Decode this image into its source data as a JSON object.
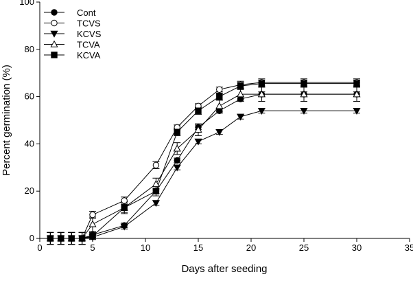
{
  "chart_data": {
    "type": "line",
    "xlabel": "Days after seeding",
    "ylabel": "Percent germination (%)",
    "xlim": [
      0,
      35
    ],
    "ylim": [
      0,
      100
    ],
    "xticks": [
      0,
      5,
      10,
      15,
      20,
      25,
      30,
      35
    ],
    "yticks": [
      0,
      20,
      40,
      60,
      80,
      100
    ],
    "grid": false,
    "legend_position": "top-left",
    "x": [
      1,
      2,
      3,
      4,
      5,
      8,
      11,
      13,
      15,
      17,
      19,
      21,
      25,
      30
    ],
    "series": [
      {
        "name": "Cont",
        "marker": "filled-circle",
        "values": [
          0,
          0,
          0,
          0,
          1.5,
          5.5,
          20,
          33,
          47,
          54,
          59,
          61,
          61,
          61
        ],
        "errors": [
          2.5,
          2.5,
          2.5,
          2.5,
          1,
          1,
          1,
          1,
          1,
          1,
          1,
          1,
          1,
          1
        ]
      },
      {
        "name": "TCVS",
        "marker": "open-circle",
        "values": [
          0,
          0,
          0,
          0,
          10,
          16,
          31,
          47,
          56,
          63,
          65,
          66,
          66,
          66
        ],
        "errors": [
          2.5,
          2.5,
          2.5,
          2.5,
          1.5,
          1.5,
          1.5,
          1,
          1,
          1,
          1.5,
          1.5,
          1.5,
          1.5
        ]
      },
      {
        "name": "KCVS",
        "marker": "filled-triangle-down",
        "values": [
          0,
          0,
          0,
          0,
          0.5,
          5,
          15,
          30,
          41,
          45,
          51.5,
          54,
          54,
          54
        ],
        "errors": [
          2.5,
          2.5,
          2.5,
          2.5,
          1,
          1,
          1,
          1,
          1,
          1,
          1,
          1,
          1,
          1
        ]
      },
      {
        "name": "TCVA",
        "marker": "open-triangle-up",
        "values": [
          0,
          0,
          0,
          0,
          6,
          13,
          23,
          38,
          46,
          56,
          61,
          61,
          61,
          61
        ],
        "errors": [
          2.5,
          2.5,
          2.5,
          2.5,
          3,
          2.5,
          2.5,
          2.5,
          2.5,
          2.5,
          2.5,
          3,
          3,
          3
        ]
      },
      {
        "name": "KCVA",
        "marker": "filled-square",
        "values": [
          0,
          0,
          0,
          0,
          1,
          13,
          20,
          45,
          54,
          60,
          64.5,
          65.5,
          65.5,
          65.5
        ],
        "errors": [
          2.5,
          2.5,
          2.5,
          2.5,
          1,
          2,
          2,
          1.5,
          1.5,
          1.5,
          1.5,
          1.5,
          1.5,
          1.5
        ]
      }
    ]
  }
}
